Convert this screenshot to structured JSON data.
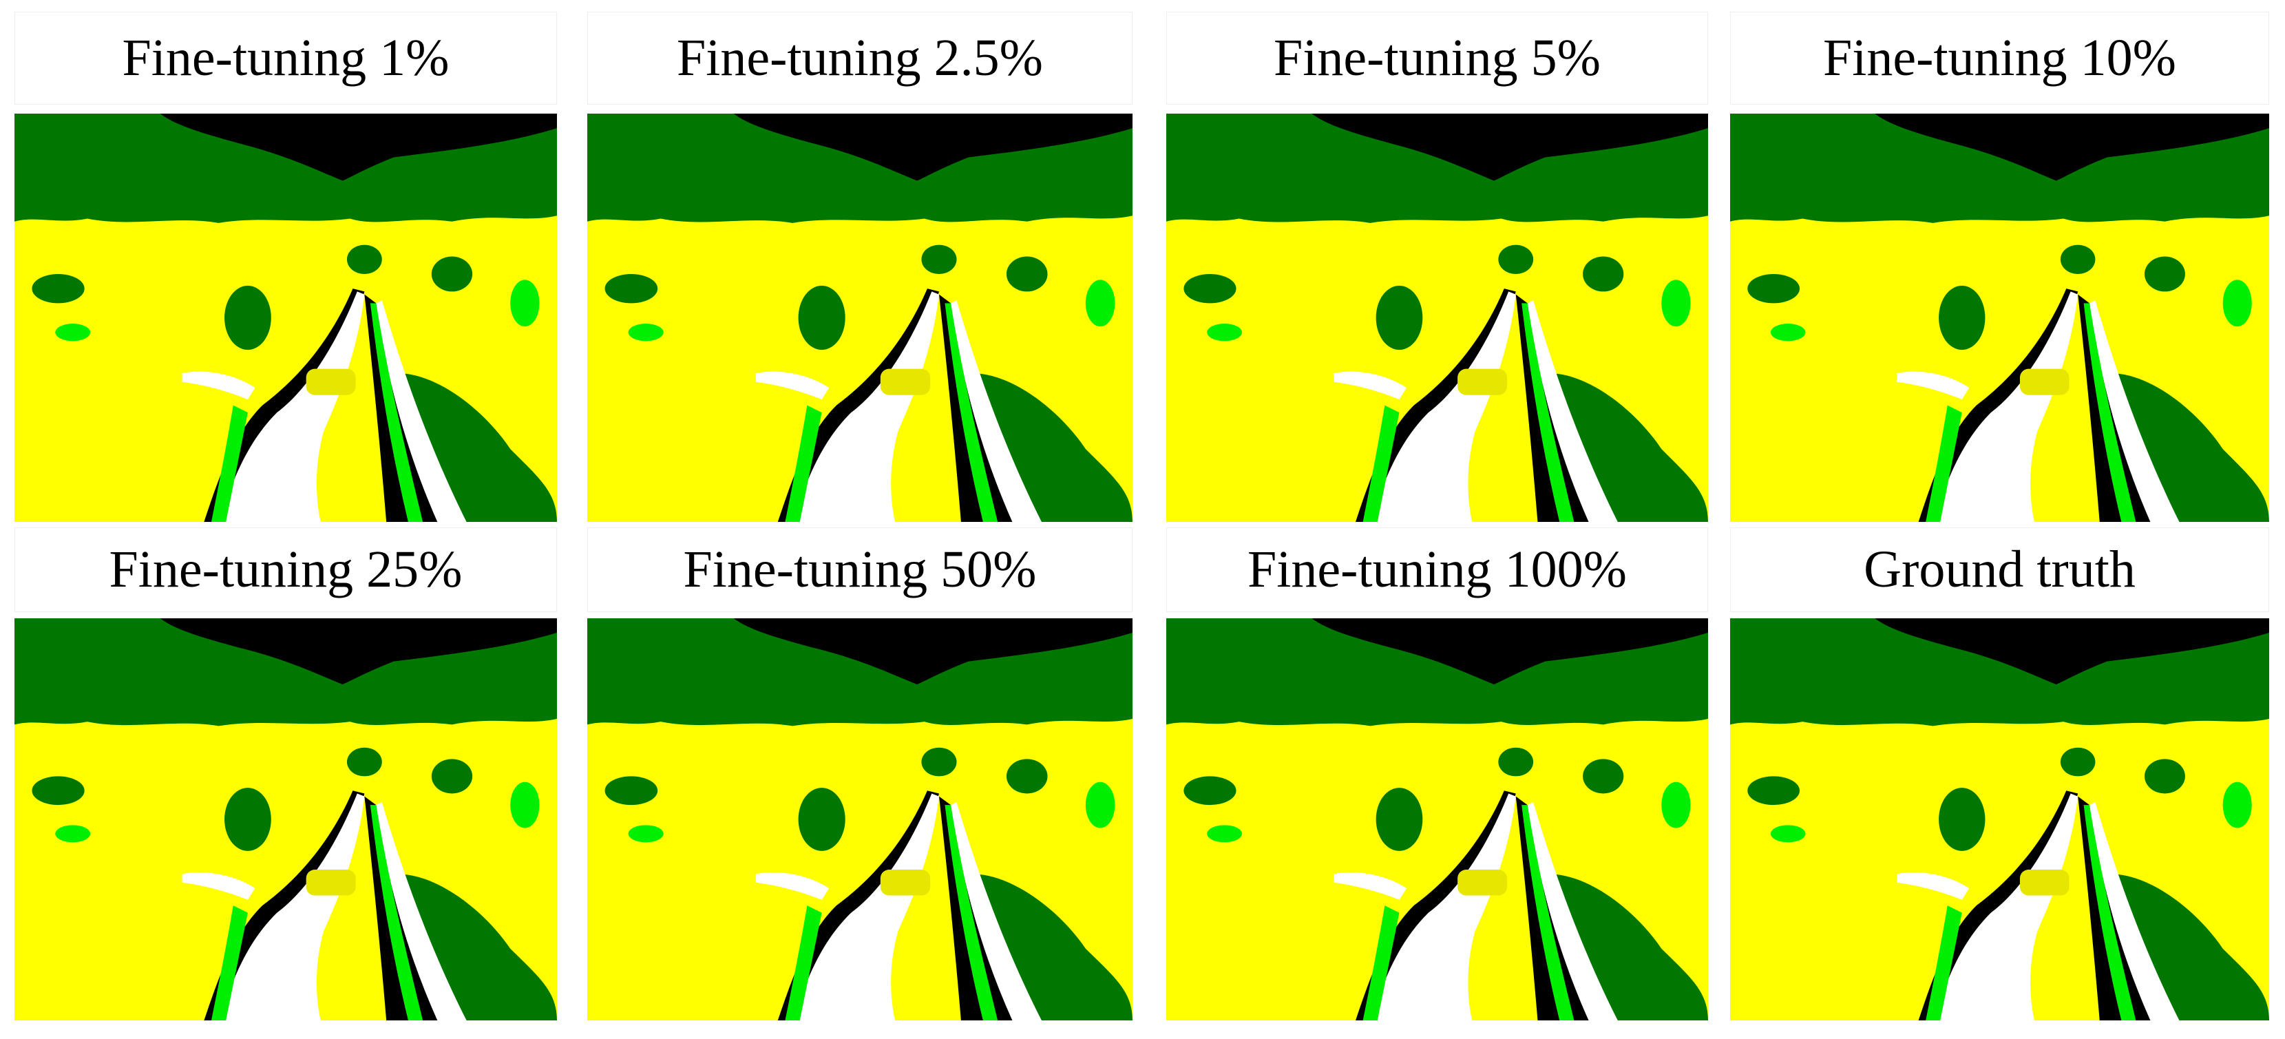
{
  "panels": [
    {
      "title": "Fine-tuning 1%"
    },
    {
      "title": "Fine-tuning 2.5%"
    },
    {
      "title": "Fine-tuning 5%"
    },
    {
      "title": "Fine-tuning 10%"
    },
    {
      "title": "Fine-tuning 25%"
    },
    {
      "title": "Fine-tuning 50%"
    },
    {
      "title": "Fine-tuning 100%"
    },
    {
      "title": "Ground truth"
    }
  ]
}
